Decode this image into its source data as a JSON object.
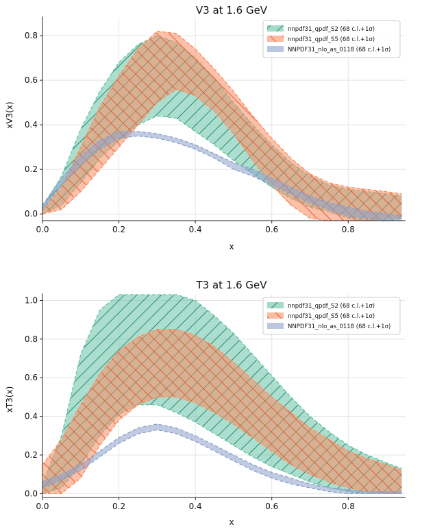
{
  "chart_data": [
    {
      "type": "area",
      "title": "V3 at 1.6 GeV",
      "xlabel": "x",
      "ylabel": "xV3(x)",
      "xlim": [
        0.0,
        0.95
      ],
      "ylim": [
        -0.03,
        0.88
      ],
      "xticks": [
        "0.0",
        "0.2",
        "0.4",
        "0.6",
        "0.8"
      ],
      "xtick_values": [
        0.0,
        0.2,
        0.4,
        0.6,
        0.8
      ],
      "yticks": [
        "0.0",
        "0.2",
        "0.4",
        "0.6",
        "0.8"
      ],
      "ytick_values": [
        0.0,
        0.2,
        0.4,
        0.6,
        0.8
      ],
      "grid": true,
      "legend_position": "top-right",
      "series": [
        {
          "name": "nnpdf31_qpdf_S2 (68 c.l.+1σ)",
          "color": "#66c2a5",
          "hatch": "//",
          "x": [
            0.0,
            0.05,
            0.1,
            0.15,
            0.2,
            0.25,
            0.3,
            0.35,
            0.4,
            0.45,
            0.5,
            0.55,
            0.6,
            0.65,
            0.7,
            0.75,
            0.8,
            0.85,
            0.9,
            0.94
          ],
          "lower": [
            0.0,
            0.04,
            0.14,
            0.25,
            0.33,
            0.4,
            0.44,
            0.43,
            0.37,
            0.31,
            0.24,
            0.18,
            0.12,
            0.07,
            0.03,
            0.01,
            -0.02,
            -0.03,
            -0.03,
            -0.02
          ],
          "upper": [
            0.03,
            0.17,
            0.38,
            0.55,
            0.68,
            0.76,
            0.8,
            0.77,
            0.7,
            0.61,
            0.5,
            0.4,
            0.31,
            0.23,
            0.17,
            0.13,
            0.11,
            0.1,
            0.09,
            0.08
          ]
        },
        {
          "name": "nnpdf31_qpdf_S5 (68 c.l.+1σ)",
          "color": "#fc8d62",
          "hatch": "\\\\",
          "x": [
            0.0,
            0.05,
            0.1,
            0.15,
            0.2,
            0.25,
            0.3,
            0.35,
            0.4,
            0.45,
            0.5,
            0.55,
            0.6,
            0.65,
            0.7,
            0.75,
            0.8,
            0.85,
            0.9,
            0.94
          ],
          "lower": [
            0.0,
            0.02,
            0.1,
            0.2,
            0.3,
            0.4,
            0.5,
            0.56,
            0.53,
            0.46,
            0.36,
            0.24,
            0.13,
            0.04,
            -0.02,
            -0.03,
            -0.03,
            -0.03,
            -0.02,
            -0.02
          ],
          "upper": [
            0.02,
            0.12,
            0.3,
            0.48,
            0.62,
            0.74,
            0.82,
            0.81,
            0.74,
            0.65,
            0.55,
            0.44,
            0.34,
            0.25,
            0.18,
            0.14,
            0.12,
            0.11,
            0.1,
            0.09
          ]
        },
        {
          "name": "NNPDF31_nlo_as_0118 (68 c.l.+1σ)",
          "color": "#8da0cb",
          "hatch": "",
          "x": [
            0.0,
            0.05,
            0.1,
            0.15,
            0.2,
            0.25,
            0.3,
            0.35,
            0.4,
            0.45,
            0.5,
            0.55,
            0.6,
            0.65,
            0.7,
            0.75,
            0.8,
            0.85,
            0.9,
            0.94
          ],
          "lower": [
            0.02,
            0.13,
            0.22,
            0.29,
            0.34,
            0.35,
            0.34,
            0.32,
            0.29,
            0.25,
            0.2,
            0.17,
            0.13,
            0.09,
            0.05,
            0.02,
            -0.01,
            -0.02,
            -0.03,
            -0.03
          ],
          "upper": [
            0.04,
            0.16,
            0.26,
            0.33,
            0.37,
            0.37,
            0.36,
            0.34,
            0.31,
            0.27,
            0.23,
            0.2,
            0.16,
            0.12,
            0.08,
            0.05,
            0.03,
            0.01,
            0.0,
            -0.01
          ]
        }
      ]
    },
    {
      "type": "area",
      "title": "T3 at 1.6 GeV",
      "xlabel": "x",
      "ylabel": "xT3(x)",
      "xlim": [
        0.0,
        0.95
      ],
      "ylim": [
        -0.02,
        1.03
      ],
      "xticks": [
        "0.0",
        "0.2",
        "0.4",
        "0.6",
        "0.8"
      ],
      "xtick_values": [
        0.0,
        0.2,
        0.4,
        0.6,
        0.8
      ],
      "yticks": [
        "0.0",
        "0.2",
        "0.4",
        "0.6",
        "0.8",
        "1.0"
      ],
      "ytick_values": [
        0.0,
        0.2,
        0.4,
        0.6,
        0.8,
        1.0
      ],
      "grid": true,
      "legend_position": "top-right",
      "series": [
        {
          "name": "nnpdf31_qpdf_S2 (68 c.l.+1σ)",
          "color": "#66c2a5",
          "hatch": "//",
          "x": [
            0.0,
            0.05,
            0.1,
            0.15,
            0.2,
            0.25,
            0.3,
            0.35,
            0.4,
            0.45,
            0.5,
            0.55,
            0.6,
            0.65,
            0.7,
            0.75,
            0.8,
            0.85,
            0.9,
            0.94
          ],
          "lower": [
            0.0,
            0.03,
            0.15,
            0.3,
            0.41,
            0.46,
            0.46,
            0.42,
            0.37,
            0.31,
            0.25,
            0.19,
            0.14,
            0.1,
            0.06,
            0.03,
            0.01,
            0.0,
            0.0,
            0.0
          ],
          "upper": [
            0.05,
            0.3,
            0.72,
            0.95,
            1.03,
            1.03,
            1.03,
            1.03,
            1.0,
            0.92,
            0.83,
            0.72,
            0.61,
            0.5,
            0.4,
            0.32,
            0.25,
            0.2,
            0.16,
            0.13
          ]
        },
        {
          "name": "nnpdf31_qpdf_S5 (68 c.l.+1σ)",
          "color": "#fc8d62",
          "hatch": "\\\\",
          "x": [
            0.0,
            0.05,
            0.1,
            0.15,
            0.2,
            0.25,
            0.3,
            0.35,
            0.4,
            0.45,
            0.5,
            0.55,
            0.6,
            0.65,
            0.7,
            0.75,
            0.8,
            0.85,
            0.9,
            0.94
          ],
          "lower": [
            0.0,
            0.0,
            0.08,
            0.25,
            0.38,
            0.46,
            0.5,
            0.5,
            0.47,
            0.42,
            0.36,
            0.29,
            0.22,
            0.15,
            0.1,
            0.06,
            0.03,
            0.01,
            0.0,
            0.0
          ],
          "upper": [
            0.15,
            0.28,
            0.46,
            0.62,
            0.74,
            0.81,
            0.85,
            0.85,
            0.82,
            0.76,
            0.68,
            0.59,
            0.5,
            0.42,
            0.34,
            0.28,
            0.22,
            0.18,
            0.15,
            0.12
          ]
        },
        {
          "name": "NNPDF31_nlo_as_0118 (68 c.l.+1σ)",
          "color": "#8da0cb",
          "hatch": "",
          "x": [
            0.0,
            0.05,
            0.1,
            0.15,
            0.2,
            0.25,
            0.3,
            0.35,
            0.4,
            0.45,
            0.5,
            0.55,
            0.6,
            0.65,
            0.7,
            0.75,
            0.8,
            0.85,
            0.9,
            0.94
          ],
          "lower": [
            0.03,
            0.07,
            0.12,
            0.19,
            0.26,
            0.31,
            0.33,
            0.31,
            0.27,
            0.22,
            0.17,
            0.12,
            0.08,
            0.05,
            0.03,
            0.01,
            0.0,
            0.0,
            0.0,
            0.0
          ],
          "upper": [
            0.06,
            0.1,
            0.15,
            0.22,
            0.29,
            0.34,
            0.36,
            0.34,
            0.3,
            0.25,
            0.2,
            0.15,
            0.11,
            0.08,
            0.05,
            0.03,
            0.02,
            0.01,
            0.01,
            0.01
          ]
        }
      ]
    }
  ]
}
